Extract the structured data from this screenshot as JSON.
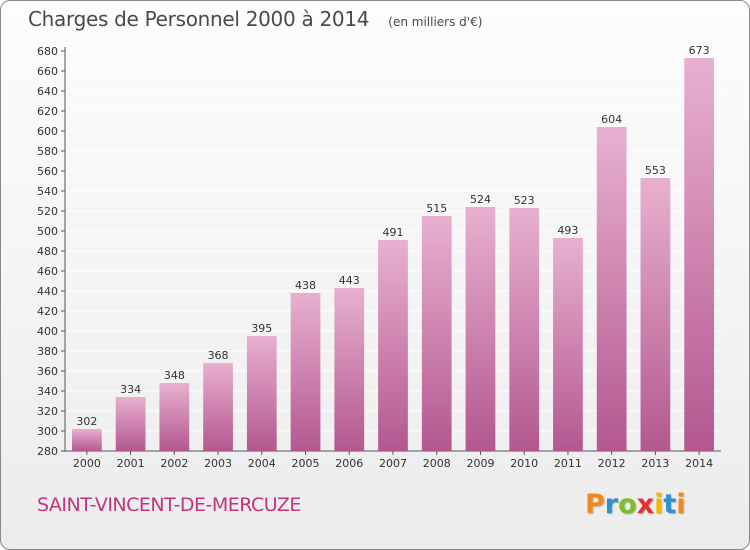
{
  "header": {
    "title": "Charges de Personnel 2000 à 2014",
    "unit": "(en milliers d'€)"
  },
  "footer": {
    "commune": "SAINT-VINCENT-DE-MERCUZE",
    "brand": "Proxiti",
    "brand_colors": [
      "#f08a1c",
      "#2e8fd1",
      "#7cbf2a",
      "#e5312d",
      "#f2b705",
      "#2e8fd1",
      "#f08a1c"
    ]
  },
  "colors": {
    "bar_top": "#e8b0d0",
    "bar_bottom": "#b3588f",
    "grid": "#ffffff",
    "commune_text": "#c4337e"
  },
  "chart_data": {
    "type": "bar",
    "title": "Charges de Personnel 2000 à 2014",
    "subtitle": "(en milliers d'€)",
    "categories": [
      "2000",
      "2001",
      "2002",
      "2003",
      "2004",
      "2005",
      "2006",
      "2007",
      "2008",
      "2009",
      "2010",
      "2011",
      "2012",
      "2013",
      "2014"
    ],
    "values": [
      302,
      334,
      348,
      368,
      395,
      438,
      443,
      491,
      515,
      524,
      523,
      493,
      604,
      553,
      673
    ],
    "ylim": [
      280,
      680
    ],
    "ytick_step": 20,
    "grid": true,
    "data_labels": true
  }
}
